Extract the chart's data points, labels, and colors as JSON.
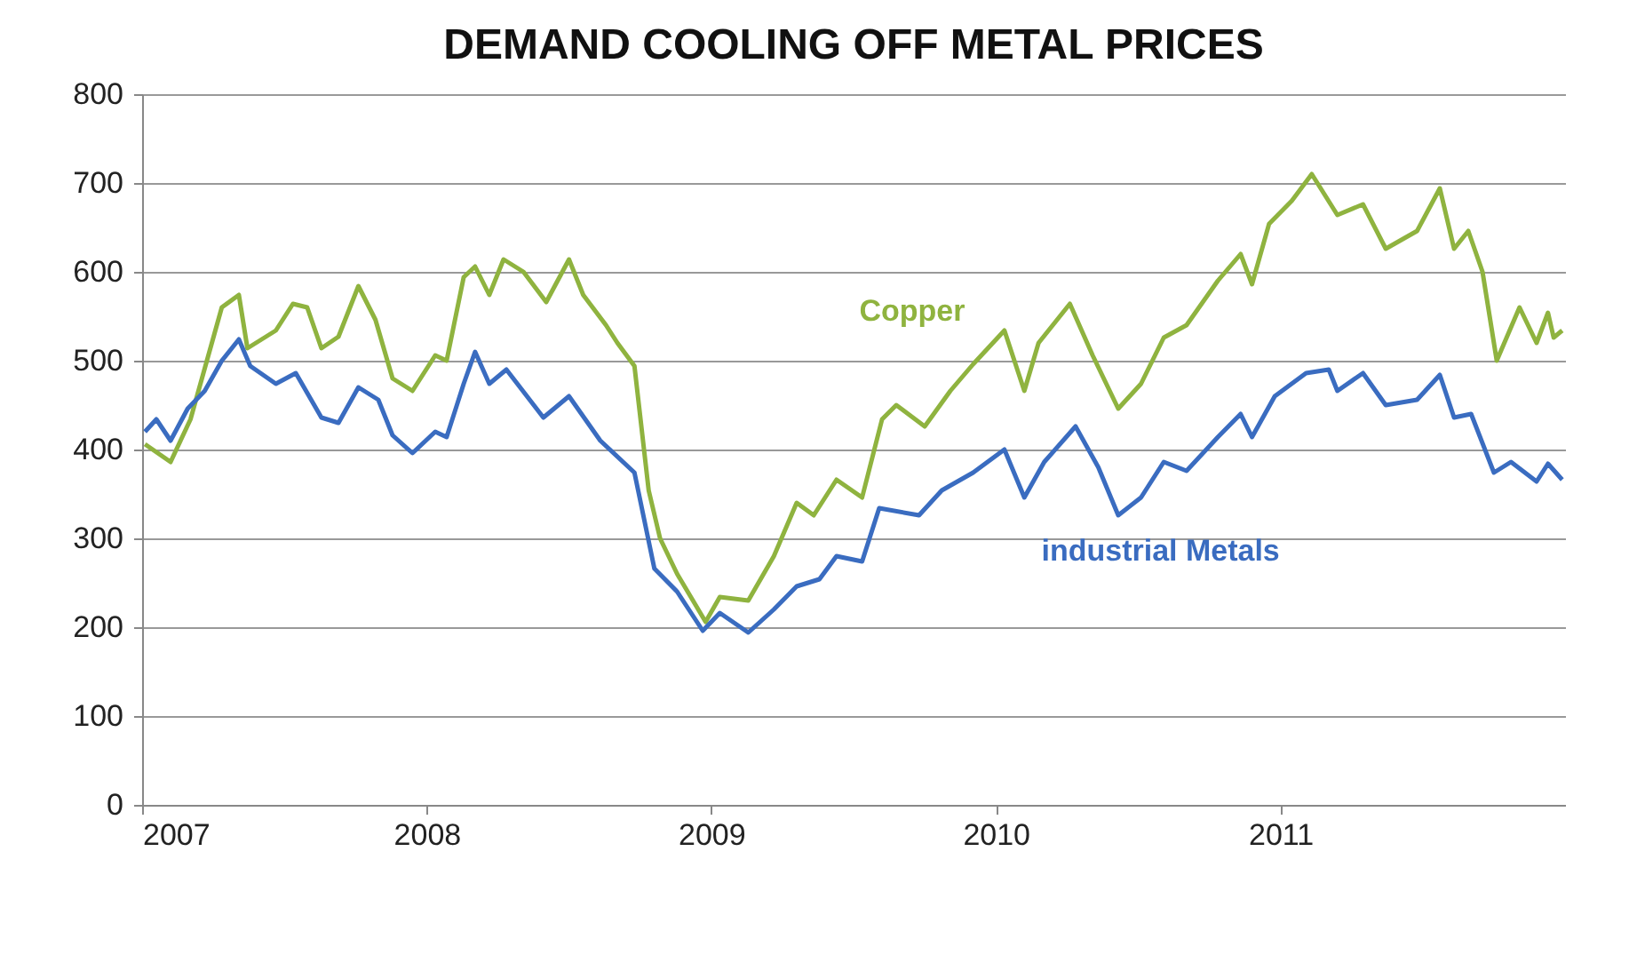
{
  "chart_data": {
    "type": "line",
    "title": "DEMAND COOLING OFF METAL PRICES",
    "xlim": [
      2007,
      2012
    ],
    "xticks": [
      2007,
      2008,
      2009,
      2010,
      2011
    ],
    "ylim": [
      0,
      800
    ],
    "yticks": [
      0,
      100,
      200,
      300,
      400,
      500,
      600,
      700,
      800
    ],
    "grid": "y",
    "legend": false,
    "marker": "none",
    "line_style": "solid",
    "series": [
      {
        "name": "Copper",
        "color": "#8fb33f",
        "x": [
          2007.01,
          2007.1,
          2007.17,
          2007.28,
          2007.34,
          2007.37,
          2007.47,
          2007.53,
          2007.58,
          2007.63,
          2007.69,
          2007.76,
          2007.82,
          2007.88,
          2007.95,
          2008.03,
          2008.07,
          2008.13,
          2008.17,
          2008.22,
          2008.27,
          2008.34,
          2008.42,
          2008.5,
          2008.55,
          2008.63,
          2008.67,
          2008.73,
          2008.78,
          2008.82,
          2008.88,
          2008.98,
          2009.03,
          2009.13,
          2009.22,
          2009.3,
          2009.36,
          2009.44,
          2009.53,
          2009.6,
          2009.65,
          2009.75,
          2009.84,
          2009.92,
          2010.03,
          2010.1,
          2010.15,
          2010.26,
          2010.34,
          2010.43,
          2010.51,
          2010.59,
          2010.67,
          2010.78,
          2010.86,
          2010.9,
          2010.96,
          2011.04,
          2011.11,
          2011.2,
          2011.29,
          2011.37,
          2011.48,
          2011.56,
          2011.61,
          2011.66,
          2011.71,
          2011.76,
          2011.84,
          2011.9,
          2011.94,
          2011.96,
          2011.99
        ],
        "values": [
          406,
          386,
          434,
          560,
          574,
          514,
          534,
          564,
          560,
          514,
          527,
          584,
          546,
          480,
          466,
          506,
          500,
          594,
          606,
          574,
          614,
          600,
          566,
          614,
          574,
          540,
          520,
          494,
          354,
          300,
          260,
          206,
          234,
          230,
          280,
          340,
          326,
          366,
          346,
          434,
          450,
          426,
          466,
          496,
          534,
          466,
          520,
          564,
          506,
          446,
          474,
          526,
          540,
          590,
          620,
          586,
          654,
          680,
          710,
          664,
          676,
          626,
          646,
          694,
          626,
          646,
          600,
          500,
          560,
          520,
          554,
          526,
          534
        ]
      },
      {
        "name": "industrial Metals",
        "color": "#3a6cc0",
        "x": [
          2007.01,
          2007.05,
          2007.1,
          2007.16,
          2007.22,
          2007.28,
          2007.34,
          2007.38,
          2007.47,
          2007.54,
          2007.63,
          2007.69,
          2007.76,
          2007.83,
          2007.88,
          2007.95,
          2008.03,
          2008.07,
          2008.13,
          2008.17,
          2008.22,
          2008.28,
          2008.41,
          2008.5,
          2008.61,
          2008.73,
          2008.8,
          2008.88,
          2008.97,
          2009.03,
          2009.13,
          2009.22,
          2009.3,
          2009.38,
          2009.44,
          2009.53,
          2009.59,
          2009.73,
          2009.81,
          2009.92,
          2010.03,
          2010.1,
          2010.17,
          2010.28,
          2010.36,
          2010.43,
          2010.51,
          2010.59,
          2010.67,
          2010.78,
          2010.86,
          2010.9,
          2010.98,
          2011.09,
          2011.17,
          2011.2,
          2011.29,
          2011.37,
          2011.48,
          2011.56,
          2011.61,
          2011.67,
          2011.75,
          2011.81,
          2011.9,
          2011.94,
          2011.99
        ],
        "values": [
          420,
          434,
          410,
          446,
          466,
          500,
          524,
          494,
          474,
          486,
          436,
          430,
          470,
          456,
          416,
          396,
          420,
          414,
          474,
          510,
          474,
          490,
          436,
          460,
          410,
          374,
          266,
          240,
          196,
          216,
          194,
          220,
          246,
          254,
          280,
          274,
          334,
          326,
          354,
          374,
          400,
          346,
          386,
          426,
          380,
          326,
          346,
          386,
          376,
          414,
          440,
          414,
          460,
          486,
          490,
          466,
          486,
          450,
          456,
          484,
          436,
          440,
          374,
          386,
          364,
          384,
          366
        ]
      }
    ]
  }
}
